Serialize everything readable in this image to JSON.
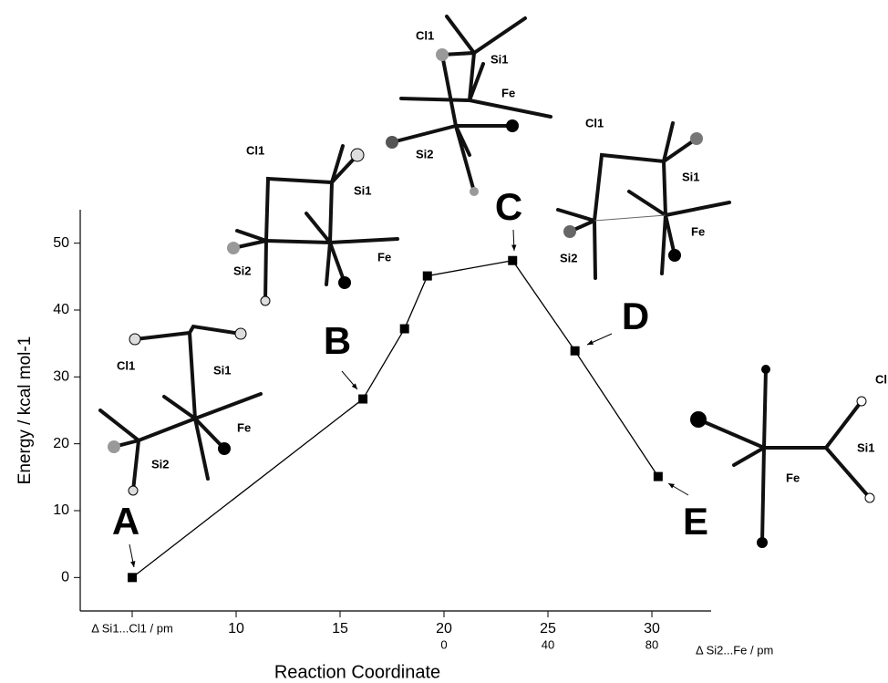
{
  "chart_data": {
    "type": "line",
    "xlabel": "Reaction Coordinate",
    "ylabel": "Energy / kcal mol-1",
    "x": [
      5,
      16.1,
      18.1,
      19.2,
      23.3,
      26.3,
      30.3
    ],
    "series": [
      {
        "color": "#000000",
        "values": [
          0,
          26.7,
          37.2,
          45.1,
          47.4,
          33.9,
          15.1
        ]
      }
    ],
    "point_labels": [
      "A",
      "B",
      "C",
      "D",
      "E"
    ],
    "xlim": [
      2.5,
      32.85
    ],
    "xticks": [
      {
        "value": 5,
        "label": "Δ Si1...Cl1 / pm"
      },
      10,
      15,
      20,
      25,
      30
    ],
    "x2label": "Δ Si2...Fe / pm",
    "x2ticks": [
      {
        "value": 20,
        "label": "0"
      },
      {
        "value": 25,
        "label": "40"
      },
      {
        "value": 30,
        "label": "80"
      }
    ],
    "ylim": [
      -5,
      55
    ],
    "yticks": [
      0,
      10,
      20,
      30,
      40,
      50
    ],
    "structures": [
      {
        "labels": [
          "Cl1",
          "Si1",
          "Fe",
          "Si2"
        ]
      },
      {
        "labels": [
          "Cl1",
          "Si1",
          "Fe",
          "Si2"
        ]
      },
      {
        "labels": [
          "Cl1",
          "Si1",
          "Fe",
          "Si2"
        ]
      },
      {
        "labels": [
          "Cl1",
          "Si1",
          "Fe",
          "Si2"
        ]
      },
      {
        "labels": [
          "Cl",
          "Si1",
          "Fe"
        ]
      }
    ]
  }
}
